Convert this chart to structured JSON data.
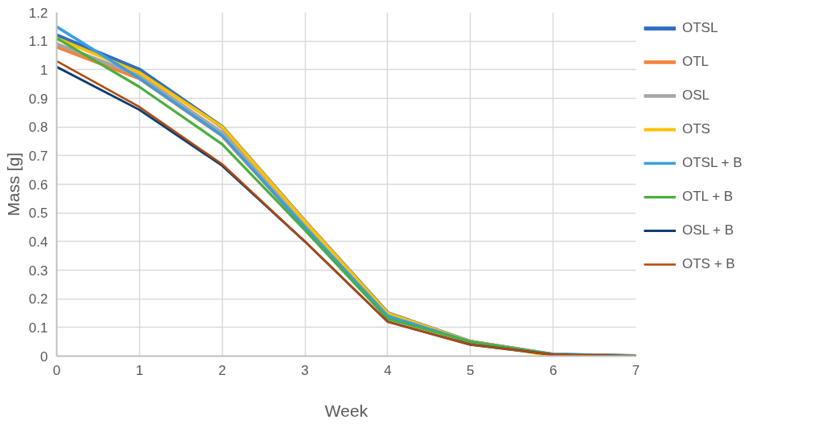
{
  "chart_data": {
    "type": "line",
    "xlabel": "Week",
    "ylabel": "Mass [g]",
    "x": [
      0,
      1,
      2,
      3,
      4,
      5,
      6,
      7
    ],
    "xlim": [
      0,
      7
    ],
    "xticks": [
      0,
      1,
      2,
      3,
      4,
      5,
      6,
      7
    ],
    "ylim": [
      0,
      1.2
    ],
    "yticks": [
      0,
      0.1,
      0.2,
      0.3,
      0.4,
      0.5,
      0.6,
      0.7,
      0.8,
      0.9,
      1,
      1.1,
      1.2
    ],
    "grid": true,
    "legend": "right",
    "marker": "none",
    "line_style": "solid",
    "series": [
      {
        "name": "OTSL",
        "color": "#2f6fc4",
        "values": [
          1.12,
          1.0,
          0.8,
          0.47,
          0.15,
          0.05,
          0.005,
          0
        ]
      },
      {
        "name": "OTL",
        "color": "#f5823a",
        "values": [
          1.08,
          0.97,
          0.77,
          0.45,
          0.14,
          0.05,
          0.005,
          0
        ]
      },
      {
        "name": "OSL",
        "color": "#a5a5a5",
        "values": [
          1.09,
          0.98,
          0.78,
          0.46,
          0.14,
          0.05,
          0.005,
          0
        ]
      },
      {
        "name": "OTS",
        "color": "#ffc000",
        "values": [
          1.11,
          0.99,
          0.8,
          0.47,
          0.15,
          0.05,
          0.0,
          0
        ]
      },
      {
        "name": "OTSL + B",
        "color": "#3a9ee0",
        "values": [
          1.15,
          0.97,
          0.77,
          0.45,
          0.14,
          0.05,
          0.005,
          0
        ]
      },
      {
        "name": "OTL + B",
        "color": "#4cae3f",
        "values": [
          1.11,
          0.94,
          0.74,
          0.44,
          0.13,
          0.05,
          0.005,
          0
        ]
      },
      {
        "name": "OSL + B",
        "color": "#0b3f73",
        "values": [
          1.01,
          0.86,
          0.665,
          0.4,
          0.12,
          0.04,
          0.005,
          0
        ]
      },
      {
        "name": "OTS + B",
        "color": "#b5470b",
        "values": [
          1.03,
          0.87,
          0.67,
          0.4,
          0.12,
          0.04,
          0.005,
          0
        ]
      }
    ]
  }
}
